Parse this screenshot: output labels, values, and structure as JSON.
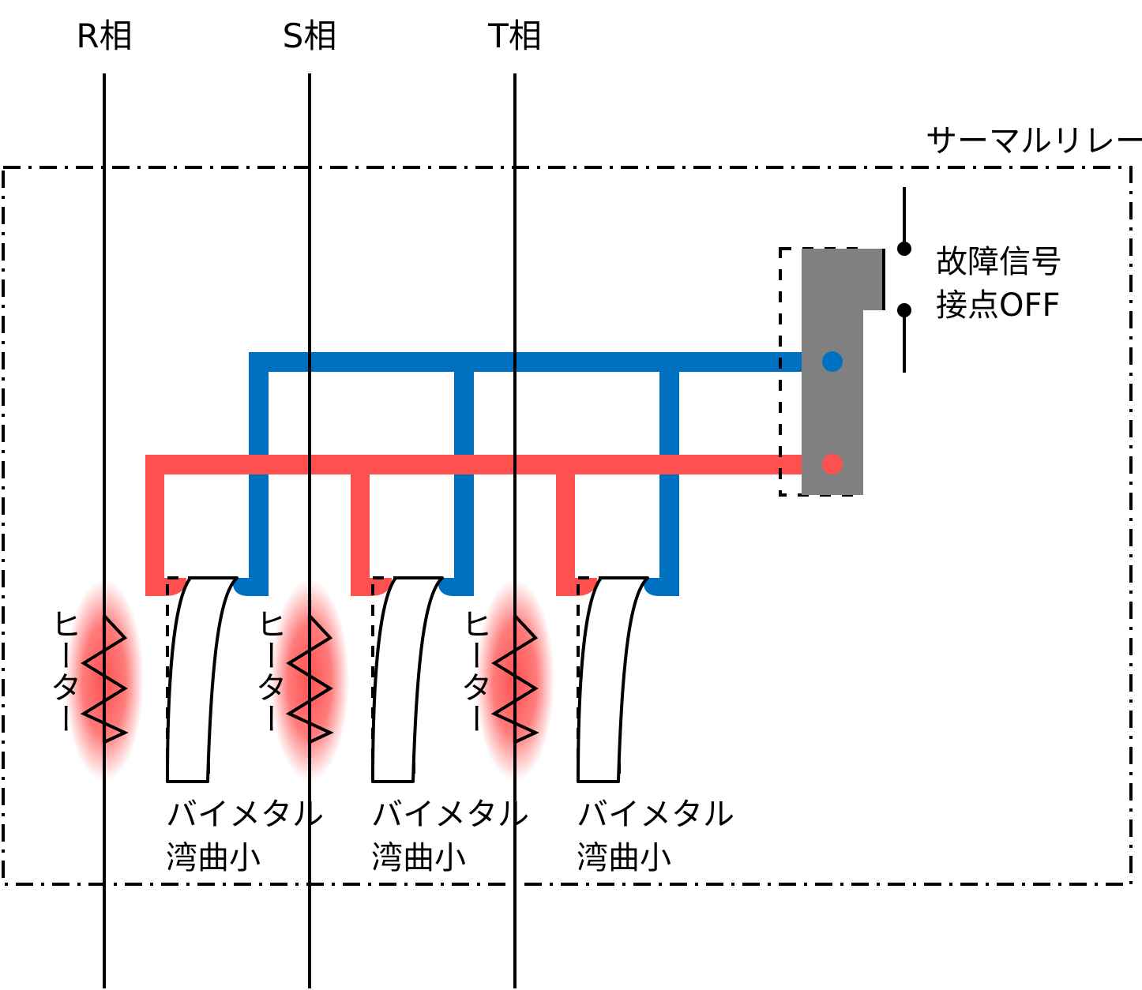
{
  "phases": [
    {
      "label": "R相"
    },
    {
      "label": "S相"
    },
    {
      "label": "T相"
    }
  ],
  "heater_label": "ヒーター",
  "bimetal": {
    "line1": "バイメタル",
    "line2": "湾曲小"
  },
  "relay": {
    "title": "サーマルリレー",
    "contact_line1": "故障信号",
    "contact_line2": "接点OFF"
  },
  "colors": {
    "blue": "#0070C0",
    "red": "#FF5050",
    "gray": "#808080"
  }
}
